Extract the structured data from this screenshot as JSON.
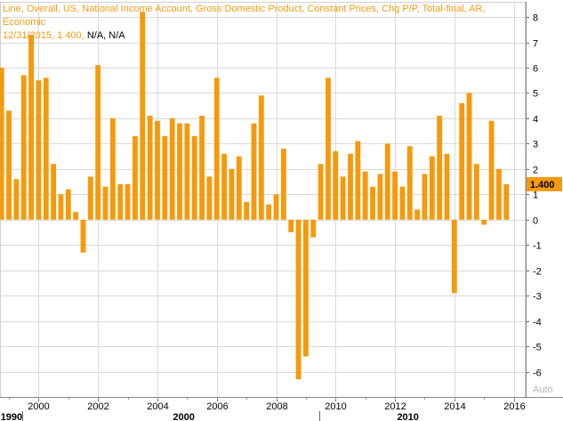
{
  "legend": {
    "line1": "Line, Overall, US, National Income Account, Gross Domestic Product, Constant Prices, Chg P/P, Total-final, AR, Economic",
    "line2_date": "12/31/2015",
    "line2_value": "1.400",
    "line2_na": "N/A, N/A"
  },
  "last_value_badge": "1.400",
  "watermark": "Auto",
  "colors": {
    "bar": "#f59a0c",
    "grid": "#d9d9d9",
    "text": "#000000",
    "legend": "#f39c12",
    "badge": "#f59a0c"
  },
  "chart_data": {
    "type": "bar",
    "ylim": [
      -7,
      8.6
    ],
    "y_ticks": [
      -6,
      -5,
      -4,
      -3,
      -2,
      -1,
      0,
      1,
      2,
      3,
      4,
      5,
      6,
      7,
      8
    ],
    "x_tick_labels": [
      "2000",
      "2002",
      "2004",
      "2006",
      "2008",
      "2010",
      "2012",
      "2014",
      "2016"
    ],
    "x_tick_years": [
      2000,
      2002,
      2004,
      2006,
      2008,
      2010,
      2012,
      2014,
      2016
    ],
    "decade_labels": [
      "1990",
      "2000",
      "2010"
    ],
    "x_range": [
      1998.7,
      2016.4
    ],
    "series": [
      {
        "x": [
          1998.75,
          1999.0,
          1999.25,
          1999.5,
          1999.75,
          2000.0,
          2000.25,
          2000.5,
          2000.75,
          2001.0,
          2001.25,
          2001.5,
          2001.75,
          2002.0,
          2002.25,
          2002.5,
          2002.75,
          2003.0,
          2003.25,
          2003.5,
          2003.75,
          2004.0,
          2004.25,
          2004.5,
          2004.75,
          2005.0,
          2005.25,
          2005.5,
          2005.75,
          2006.0,
          2006.25,
          2006.5,
          2006.75,
          2007.0,
          2007.25,
          2007.5,
          2007.75,
          2008.0,
          2008.25,
          2008.5,
          2008.75,
          2009.0,
          2009.25,
          2009.5,
          2009.75,
          2010.0,
          2010.25,
          2010.5,
          2010.75,
          2011.0,
          2011.25,
          2011.5,
          2011.75,
          2012.0,
          2012.25,
          2012.5,
          2012.75,
          2013.0,
          2013.25,
          2013.5,
          2013.75,
          2014.0,
          2014.25,
          2014.5,
          2014.75,
          2015.0,
          2015.25,
          2015.5,
          2015.75
        ],
        "values": [
          6.0,
          4.3,
          1.6,
          5.7,
          7.3,
          5.5,
          5.6,
          2.2,
          1.0,
          1.2,
          0.3,
          -1.3,
          1.7,
          6.1,
          1.3,
          4.0,
          1.4,
          1.4,
          3.3,
          8.2,
          4.1,
          3.9,
          3.3,
          4.0,
          3.8,
          3.8,
          3.3,
          4.1,
          1.7,
          5.6,
          2.6,
          2.0,
          2.5,
          0.7,
          3.8,
          4.9,
          0.6,
          1.0,
          2.8,
          -0.5,
          -6.3,
          -5.4,
          -0.7,
          2.2,
          5.6,
          2.7,
          1.7,
          2.6,
          3.1,
          1.9,
          1.3,
          1.8,
          3.0,
          1.9,
          1.3,
          2.9,
          0.4,
          1.8,
          2.5,
          4.1,
          2.6,
          -2.9,
          4.6,
          5.0,
          2.2,
          -0.2,
          3.9,
          2.0,
          1.4
        ]
      }
    ]
  }
}
